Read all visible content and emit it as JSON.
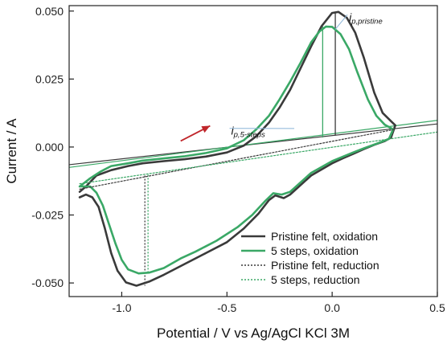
{
  "chart_data": {
    "type": "line",
    "xlabel": "Potential / V vs Ag/AgCl KCl 3M",
    "ylabel": "Current / A",
    "xlim": [
      -1.25,
      0.5
    ],
    "ylim": [
      -0.055,
      0.052
    ],
    "xticks": [
      -1.0,
      -0.5,
      0.0,
      0.5
    ],
    "xtick_labels": [
      "-1.0",
      "-0.5",
      "0.0",
      "0.5"
    ],
    "yticks": [
      0.05,
      0.025,
      0.0,
      -0.025,
      -0.05
    ],
    "ytick_labels": [
      "0.050",
      "0.025",
      "0.000",
      "-0.025",
      "-0.050"
    ],
    "legend_position": "bottom-right",
    "colors": {
      "pristine": "#3a3a3a",
      "five_steps": "#3aa866",
      "arrow": "#c0262b",
      "anno_line": "#8ab4d8"
    },
    "series": [
      {
        "name": "Pristine felt, oxidation",
        "style": "solid",
        "color": "#3a3a3a",
        "x": [
          -1.2,
          -1.17,
          -1.12,
          -1.05,
          -0.97,
          -0.9,
          -0.8,
          -0.7,
          -0.6,
          -0.5,
          -0.42,
          -0.36,
          -0.3,
          -0.25,
          -0.2,
          -0.15,
          -0.1,
          -0.05,
          0.0,
          0.03,
          0.07,
          0.11,
          0.15,
          0.2,
          0.24,
          0.28,
          0.3,
          0.28,
          0.25,
          0.2,
          0.15,
          0.1,
          0.05,
          0.0,
          -0.1,
          -0.2,
          -0.23,
          -0.27,
          -0.3,
          -0.35,
          -0.42,
          -0.5,
          -0.6,
          -0.7,
          -0.8,
          -0.87,
          -0.93,
          -0.98,
          -1.02,
          -1.05,
          -1.08,
          -1.11,
          -1.14,
          -1.17,
          -1.2
        ],
        "y": [
          -0.0165,
          -0.0145,
          -0.0105,
          -0.0085,
          -0.007,
          -0.006,
          -0.0052,
          -0.0045,
          -0.0035,
          -0.002,
          0.0005,
          0.004,
          0.009,
          0.0145,
          0.021,
          0.029,
          0.037,
          0.0445,
          0.0493,
          0.0497,
          0.0475,
          0.042,
          0.033,
          0.02,
          0.0125,
          0.0095,
          0.008,
          0.0035,
          0.0022,
          0.0008,
          -0.0008,
          -0.0025,
          -0.0042,
          -0.006,
          -0.0105,
          -0.0175,
          -0.0188,
          -0.0178,
          -0.0195,
          -0.0245,
          -0.03,
          -0.035,
          -0.039,
          -0.043,
          -0.047,
          -0.0495,
          -0.051,
          -0.0498,
          -0.0455,
          -0.039,
          -0.03,
          -0.022,
          -0.0185,
          -0.0175,
          -0.0185
        ]
      },
      {
        "name": "5 steps, oxidation",
        "style": "solid",
        "color": "#3aa866",
        "x": [
          -1.2,
          -1.15,
          -1.1,
          -1.05,
          -0.97,
          -0.9,
          -0.8,
          -0.7,
          -0.6,
          -0.5,
          -0.42,
          -0.36,
          -0.3,
          -0.25,
          -0.2,
          -0.15,
          -0.1,
          -0.06,
          -0.03,
          0.0,
          0.04,
          0.08,
          0.12,
          0.17,
          0.21,
          0.25,
          0.29,
          0.27,
          0.22,
          0.15,
          0.1,
          0.05,
          0.0,
          -0.1,
          -0.2,
          -0.24,
          -0.28,
          -0.32,
          -0.38,
          -0.45,
          -0.55,
          -0.65,
          -0.72,
          -0.8,
          -0.87,
          -0.92,
          -0.97,
          -1.0,
          -1.03,
          -1.06,
          -1.09,
          -1.12,
          -1.15,
          -1.2
        ],
        "y": [
          -0.0145,
          -0.0115,
          -0.009,
          -0.007,
          -0.006,
          -0.005,
          -0.0042,
          -0.0034,
          -0.0022,
          -0.0005,
          0.0025,
          0.0065,
          0.0115,
          0.0175,
          0.024,
          0.031,
          0.0385,
          0.0425,
          0.0443,
          0.0442,
          0.0415,
          0.036,
          0.0275,
          0.0175,
          0.0115,
          0.0082,
          0.0065,
          0.003,
          0.0015,
          -0.0005,
          -0.002,
          -0.0036,
          -0.0052,
          -0.0095,
          -0.0165,
          -0.0175,
          -0.017,
          -0.02,
          -0.025,
          -0.0295,
          -0.0345,
          -0.0385,
          -0.041,
          -0.0445,
          -0.0462,
          -0.0465,
          -0.045,
          -0.0415,
          -0.0355,
          -0.0285,
          -0.0215,
          -0.0168,
          -0.0145,
          -0.0145
        ]
      },
      {
        "name": "Pristine felt, reduction",
        "style": "dotted",
        "color": "#3a3a3a",
        "x": [
          -1.2,
          0.3
        ],
        "y": [
          -0.0155,
          0.0065
        ]
      },
      {
        "name": "5 steps, reduction",
        "style": "dotted",
        "color": "#3aa866",
        "x": [
          -1.2,
          0.5
        ],
        "y": [
          -0.0135,
          0.0055
        ]
      }
    ],
    "baselines": [
      {
        "series": "Pristine felt, oxidation",
        "style": "solid",
        "color": "#3a3a3a",
        "x": [
          -1.25,
          0.5
        ],
        "y": [
          -0.0065,
          0.0085
        ]
      },
      {
        "series": "5 steps, oxidation",
        "style": "solid",
        "color": "#3aa866",
        "x": [
          -1.25,
          0.5
        ],
        "y": [
          -0.0075,
          0.0098
        ]
      }
    ],
    "peak_markers": [
      {
        "series": "Pristine felt, oxidation",
        "style": "solid",
        "color": "#3a3a3a",
        "x": 0.015,
        "y_from": 0.0042,
        "y_to": 0.0497
      },
      {
        "series": "5 steps, oxidation",
        "style": "solid",
        "color": "#3aa866",
        "x": -0.045,
        "y_from": 0.0035,
        "y_to": 0.0443
      },
      {
        "series": "Pristine felt, reduction",
        "style": "dotted",
        "color": "#3a3a3a",
        "x": -0.89,
        "y_from": -0.0105,
        "y_to": -0.051
      },
      {
        "series": "5 steps, reduction",
        "style": "dotted",
        "color": "#3aa866",
        "x": -0.875,
        "y_from": -0.0102,
        "y_to": -0.0465
      }
    ],
    "annotations": [
      {
        "main": "i",
        "sub": "p,pristine",
        "x": 0.08,
        "y": 0.0463,
        "leader_to": [
          0.015,
          0.0433
        ]
      },
      {
        "main": "i",
        "sub": "p,5-steps",
        "x": -0.48,
        "y": 0.0045,
        "leader_to": [
          -0.18,
          0.0068
        ]
      }
    ],
    "arrow": {
      "from": [
        -0.72,
        0.0022
      ],
      "to": [
        -0.58,
        0.0078
      ],
      "color": "#c0262b"
    }
  }
}
